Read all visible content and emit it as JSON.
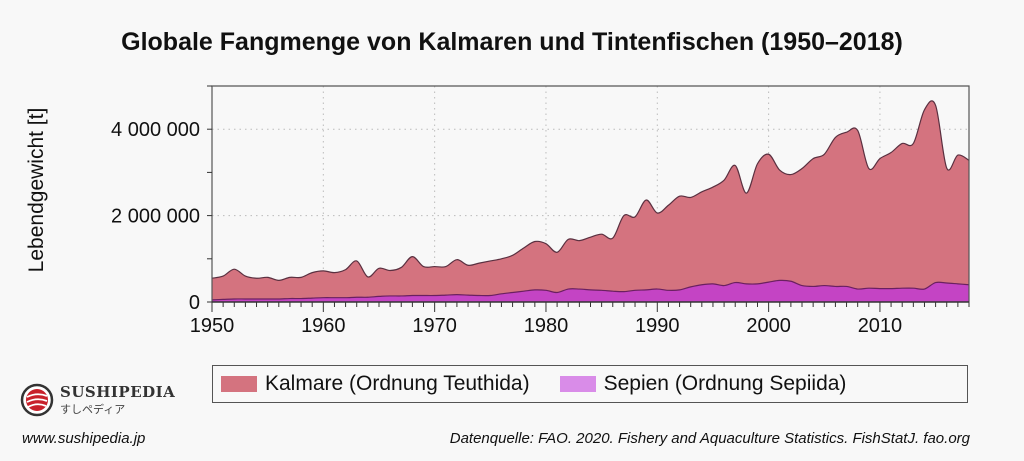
{
  "chart_data": {
    "type": "area",
    "stacked": true,
    "title": "Globale Fangmenge von Kalmaren und Tintenfischen (1950–2018)",
    "xlabel": "",
    "ylabel": "Lebendgewicht [t]",
    "xlim": [
      1950,
      2018
    ],
    "ylim": [
      0,
      5000000
    ],
    "xticks": [
      "1950",
      "1960",
      "1970",
      "1980",
      "1990",
      "2000",
      "2010"
    ],
    "yticks": [
      "0",
      "2 000 000",
      "4 000 000"
    ],
    "grid": true,
    "legend": "bottom",
    "x_start": 1950,
    "series": [
      {
        "name": "Kalmare (Ordnung Teuthida)",
        "color": "#d4737f",
        "values": [
          500000,
          540000,
          690000,
          530000,
          480000,
          500000,
          430000,
          490000,
          490000,
          590000,
          620000,
          580000,
          650000,
          840000,
          470000,
          650000,
          590000,
          660000,
          900000,
          670000,
          670000,
          660000,
          810000,
          690000,
          750000,
          800000,
          810000,
          860000,
          1000000,
          1120000,
          1080000,
          930000,
          1150000,
          1120000,
          1220000,
          1300000,
          1230000,
          1760000,
          1700000,
          2080000,
          1760000,
          1970000,
          2170000,
          2070000,
          2150000,
          2240000,
          2440000,
          2710000,
          2100000,
          2780000,
          2960000,
          2550000,
          2470000,
          2710000,
          2960000,
          3040000,
          3450000,
          3570000,
          3670000,
          2770000,
          3010000,
          3150000,
          3350000,
          3350000,
          4150000,
          4100000,
          2660000,
          2980000,
          2880000
        ]
      },
      {
        "name": "Sepien (Ordnung Sepiida)",
        "color": "#c444c4",
        "legend_color": "#d98ce8",
        "values": [
          50000,
          60000,
          70000,
          70000,
          70000,
          70000,
          70000,
          80000,
          80000,
          90000,
          100000,
          100000,
          100000,
          110000,
          110000,
          130000,
          140000,
          140000,
          150000,
          150000,
          150000,
          160000,
          170000,
          160000,
          150000,
          150000,
          190000,
          220000,
          250000,
          280000,
          270000,
          220000,
          300000,
          300000,
          280000,
          270000,
          250000,
          240000,
          270000,
          280000,
          300000,
          270000,
          280000,
          350000,
          400000,
          420000,
          380000,
          450000,
          420000,
          420000,
          460000,
          500000,
          480000,
          380000,
          360000,
          380000,
          360000,
          360000,
          300000,
          320000,
          310000,
          310000,
          320000,
          320000,
          300000,
          450000,
          440000,
          420000,
          400000
        ]
      }
    ]
  },
  "footer": {
    "logo_name": "SUSHIPEDIA",
    "logo_sub": "すしペディア",
    "url": "www.sushipedia.jp",
    "source": "Datenquelle: FAO. 2020. Fishery and Aquaculture Statistics. FishStatJ. fao.org"
  }
}
